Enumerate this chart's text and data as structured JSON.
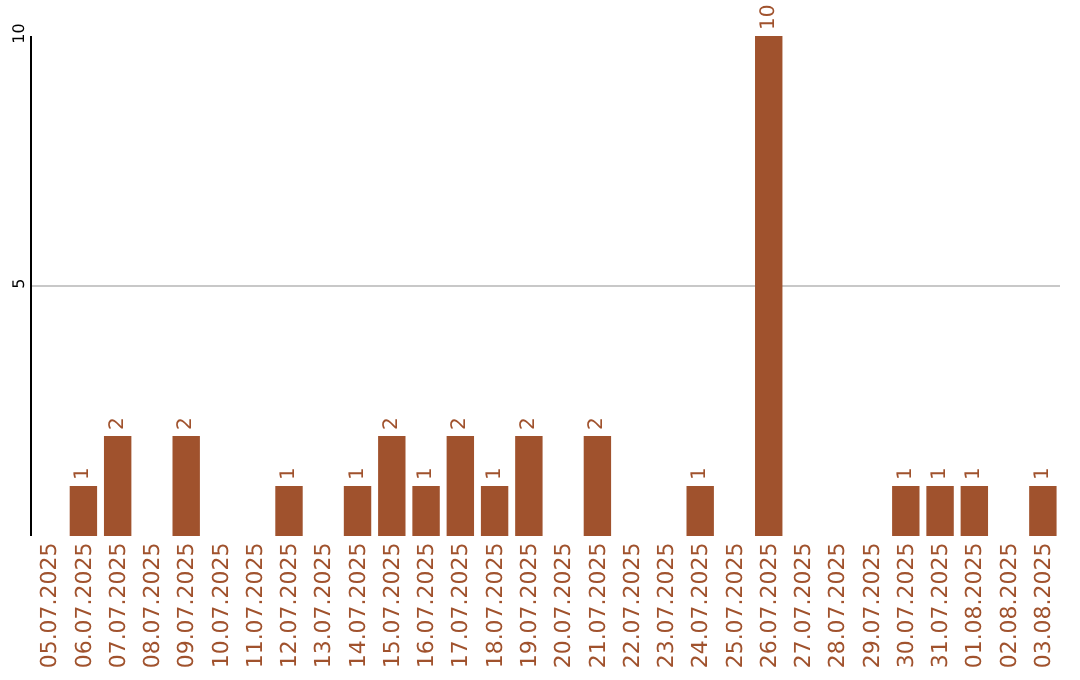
{
  "chart_data": {
    "type": "bar",
    "categories": [
      "05.07.2025",
      "06.07.2025",
      "07.07.2025",
      "08.07.2025",
      "09.07.2025",
      "10.07.2025",
      "11.07.2025",
      "12.07.2025",
      "13.07.2025",
      "14.07.2025",
      "15.07.2025",
      "16.07.2025",
      "17.07.2025",
      "18.07.2025",
      "19.07.2025",
      "20.07.2025",
      "21.07.2025",
      "22.07.2025",
      "23.07.2025",
      "24.07.2025",
      "25.07.2025",
      "26.07.2025",
      "27.07.2025",
      "28.07.2025",
      "29.07.2025",
      "30.07.2025",
      "31.07.2025",
      "01.08.2025",
      "02.08.2025",
      "03.08.2025"
    ],
    "values": [
      null,
      1,
      2,
      null,
      2,
      null,
      null,
      1,
      null,
      1,
      2,
      1,
      2,
      1,
      2,
      null,
      2,
      null,
      null,
      1,
      null,
      10,
      null,
      null,
      null,
      1,
      1,
      1,
      null,
      1
    ],
    "color": "#a0522d",
    "ylim": [
      0,
      10
    ],
    "yticks": [
      5,
      10
    ],
    "grid": "y",
    "data_labels": true
  }
}
